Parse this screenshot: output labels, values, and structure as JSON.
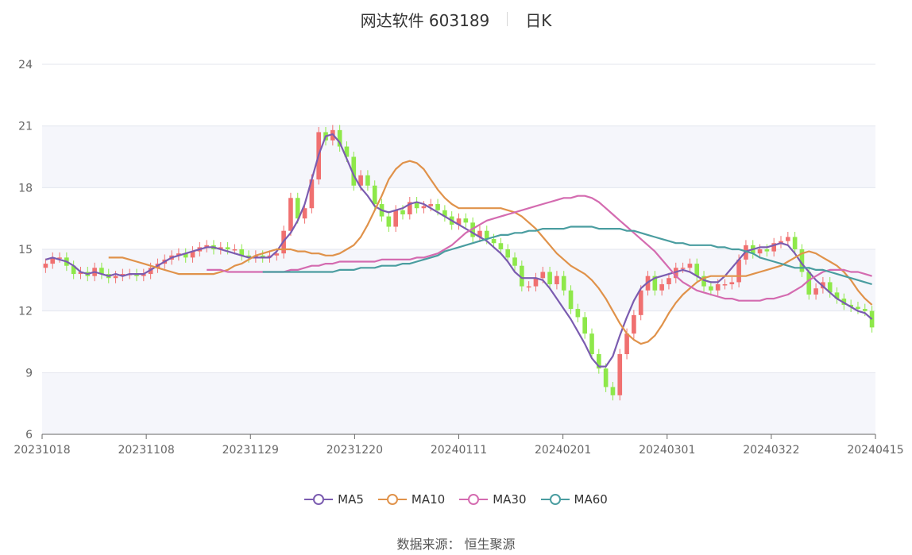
{
  "header": {
    "stock_name": "网达软件 603189",
    "period": "日K"
  },
  "source": {
    "label": "数据来源：",
    "value": "恒生聚源"
  },
  "colors": {
    "up": "#f07070",
    "down": "#8ee84a",
    "band": "#f5f6fb",
    "grid": "#e3e6ee",
    "ma5": "#7b5cb0",
    "ma10": "#e0924a",
    "ma30": "#d46bb0",
    "ma60": "#4a9da0"
  },
  "chart_data": {
    "type": "candlestick",
    "title": "网达软件 603189 日K",
    "y_ticks": [
      "6",
      "9",
      "12",
      "15",
      "18",
      "21",
      "24"
    ],
    "ylim": [
      6,
      24
    ],
    "x_ticks": [
      "20231018",
      "20231108",
      "20231129",
      "20231220",
      "20240111",
      "20240201",
      "20240301",
      "20240322",
      "20240415"
    ],
    "candles_count": 119,
    "closes": [
      14.3,
      14.6,
      14.6,
      14.2,
      13.8,
      13.9,
      13.7,
      14.1,
      13.8,
      13.6,
      13.7,
      13.8,
      13.8,
      13.7,
      13.8,
      14.1,
      14.3,
      14.5,
      14.7,
      14.8,
      14.6,
      14.9,
      15.1,
      15.2,
      15.0,
      15.1,
      15.0,
      15.0,
      14.7,
      14.6,
      14.7,
      14.6,
      14.7,
      14.8,
      15.9,
      17.5,
      16.5,
      17.0,
      18.4,
      20.7,
      20.3,
      20.8,
      20.0,
      19.5,
      18.1,
      18.6,
      18.1,
      17.2,
      16.6,
      16.1,
      16.9,
      16.7,
      17.3,
      17.0,
      17.1,
      17.2,
      16.9,
      16.6,
      16.2,
      16.5,
      16.3,
      15.6,
      15.9,
      15.5,
      15.3,
      15.0,
      14.6,
      14.2,
      13.2,
      13.2,
      13.6,
      13.9,
      13.3,
      13.7,
      13.0,
      12.1,
      11.7,
      10.9,
      9.9,
      9.2,
      8.3,
      7.9,
      9.9,
      10.9,
      11.8,
      13.0,
      13.7,
      13.0,
      13.3,
      13.6,
      14.1,
      14.1,
      14.3,
      13.7,
      13.2,
      13.0,
      13.3,
      13.3,
      13.4,
      14.5,
      15.2,
      14.8,
      15.0,
      14.9,
      15.3,
      15.4,
      15.6,
      15.0,
      13.9,
      12.8,
      13.1,
      13.4,
      12.9,
      12.6,
      12.3,
      12.2,
      12.1,
      12.0,
      11.2
    ],
    "series": [
      {
        "name": "MA5",
        "values": [
          14.5,
          14.6,
          14.5,
          14.4,
          14.2,
          13.9,
          13.8,
          13.9,
          13.8,
          13.7,
          13.8,
          13.7,
          13.8,
          13.8,
          13.8,
          14.0,
          14.2,
          14.4,
          14.6,
          14.7,
          14.8,
          14.9,
          15.0,
          15.1,
          15.1,
          15.0,
          14.9,
          14.8,
          14.7,
          14.6,
          14.6,
          14.6,
          14.6,
          14.9,
          15.4,
          15.8,
          16.4,
          17.2,
          18.4,
          19.6,
          20.5,
          20.6,
          20.2,
          19.4,
          18.6,
          18.0,
          17.6,
          17.1,
          16.9,
          16.8,
          16.9,
          17.0,
          17.2,
          17.3,
          17.2,
          17.0,
          16.8,
          16.6,
          16.4,
          16.2,
          16.0,
          15.8,
          15.6,
          15.4,
          15.1,
          14.8,
          14.4,
          13.9,
          13.6,
          13.6,
          13.6,
          13.5,
          13.1,
          12.6,
          12.1,
          11.6,
          11.0,
          10.4,
          9.7,
          9.3,
          9.3,
          9.8,
          10.8,
          11.7,
          12.5,
          13.1,
          13.4,
          13.6,
          13.7,
          13.8,
          13.9,
          14.0,
          13.9,
          13.7,
          13.5,
          13.4,
          13.4,
          13.7,
          14.1,
          14.5,
          14.9,
          15.0,
          15.1,
          15.1,
          15.2,
          15.3,
          15.2,
          14.8,
          14.3,
          13.9,
          13.5,
          13.2,
          12.9,
          12.6,
          12.4,
          12.2,
          12.0,
          11.9,
          11.6
        ]
      },
      {
        "name": "MA10",
        "values": [
          14.6,
          14.6,
          14.6,
          14.5,
          14.4,
          14.3,
          14.2,
          14.1,
          14.0,
          13.9,
          13.8,
          13.8,
          13.8,
          13.8,
          13.8,
          13.8,
          13.9,
          14.0,
          14.2,
          14.3,
          14.5,
          14.7,
          14.8,
          14.9,
          15.0,
          15.0,
          15.0,
          14.9,
          14.9,
          14.8,
          14.8,
          14.7,
          14.7,
          14.8,
          15.0,
          15.2,
          15.6,
          16.2,
          16.9,
          17.6,
          18.4,
          18.9,
          19.2,
          19.3,
          19.2,
          18.9,
          18.4,
          17.9,
          17.5,
          17.2,
          17.0,
          17.0,
          17.0,
          17.0,
          17.0,
          17.0,
          17.0,
          16.9,
          16.8,
          16.6,
          16.3,
          16.0,
          15.6,
          15.2,
          14.8,
          14.5,
          14.2,
          14.0,
          13.8,
          13.5,
          13.1,
          12.6,
          12.0,
          11.4,
          10.9,
          10.6,
          10.4,
          10.5,
          10.8,
          11.3,
          11.9,
          12.4,
          12.8,
          13.1,
          13.4,
          13.6,
          13.7,
          13.7,
          13.7,
          13.7,
          13.7,
          13.7,
          13.8,
          13.9,
          14.0,
          14.1,
          14.2,
          14.4,
          14.6,
          14.8,
          14.9,
          14.8,
          14.6,
          14.4,
          14.2,
          13.9,
          13.5,
          13.0,
          12.6,
          12.3
        ]
      },
      {
        "name": "MA30",
        "values": [
          14.0,
          14.0,
          14.0,
          13.9,
          13.9,
          13.9,
          13.9,
          13.9,
          13.9,
          13.9,
          13.9,
          13.9,
          14.0,
          14.0,
          14.1,
          14.2,
          14.2,
          14.3,
          14.3,
          14.4,
          14.4,
          14.4,
          14.4,
          14.4,
          14.4,
          14.5,
          14.5,
          14.5,
          14.5,
          14.5,
          14.6,
          14.6,
          14.7,
          14.8,
          15.0,
          15.2,
          15.5,
          15.8,
          16.0,
          16.2,
          16.4,
          16.5,
          16.6,
          16.7,
          16.8,
          16.9,
          17.0,
          17.1,
          17.2,
          17.3,
          17.4,
          17.5,
          17.5,
          17.6,
          17.6,
          17.5,
          17.3,
          17.0,
          16.7,
          16.4,
          16.1,
          15.8,
          15.5,
          15.2,
          14.9,
          14.5,
          14.1,
          13.7,
          13.4,
          13.2,
          13.0,
          12.9,
          12.8,
          12.7,
          12.6,
          12.6,
          12.5,
          12.5,
          12.5,
          12.5,
          12.6,
          12.6,
          12.7,
          12.8,
          13.0,
          13.2,
          13.5,
          13.7,
          13.9,
          14.0,
          14.0,
          14.0,
          13.9,
          13.9,
          13.8,
          13.7
        ]
      },
      {
        "name": "MA60",
        "values": [
          13.9,
          13.9,
          13.9,
          13.9,
          13.9,
          13.9,
          13.9,
          13.9,
          13.9,
          13.9,
          13.9,
          14.0,
          14.0,
          14.0,
          14.1,
          14.1,
          14.1,
          14.2,
          14.2,
          14.2,
          14.3,
          14.3,
          14.4,
          14.5,
          14.6,
          14.7,
          14.9,
          15.0,
          15.1,
          15.2,
          15.3,
          15.4,
          15.5,
          15.6,
          15.7,
          15.7,
          15.8,
          15.8,
          15.9,
          15.9,
          16.0,
          16.0,
          16.0,
          16.0,
          16.1,
          16.1,
          16.1,
          16.1,
          16.0,
          16.0,
          16.0,
          16.0,
          15.9,
          15.9,
          15.8,
          15.7,
          15.6,
          15.5,
          15.4,
          15.3,
          15.3,
          15.2,
          15.2,
          15.2,
          15.2,
          15.1,
          15.1,
          15.0,
          15.0,
          14.9,
          14.8,
          14.6,
          14.5,
          14.4,
          14.3,
          14.2,
          14.1,
          14.1,
          14.1,
          14.0,
          14.0,
          13.9,
          13.8,
          13.7,
          13.6,
          13.5,
          13.4,
          13.3
        ]
      }
    ]
  }
}
